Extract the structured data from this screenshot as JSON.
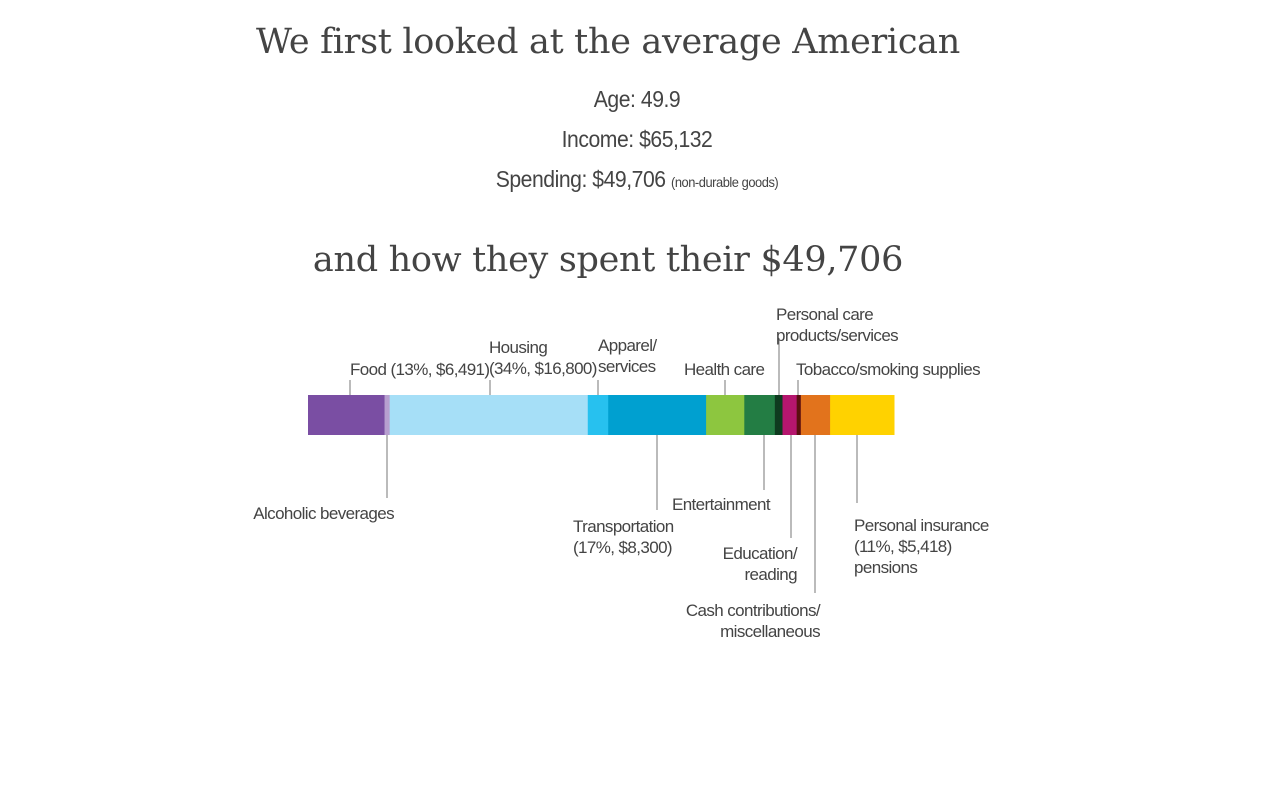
{
  "header": {
    "title": "We first looked at the average American",
    "age": "Age: 49.9",
    "income": "Income: $65,132",
    "spending": "Spending: $49,706",
    "spending_note": "(non-durable goods)",
    "subtitle": "and how they spent their $49,706"
  },
  "chart_data": {
    "type": "bar",
    "stacked": true,
    "orientation": "horizontal",
    "total": 49706,
    "segments": [
      {
        "name": "Food",
        "value": 6491,
        "color": "#7a4ea3",
        "label": [
          "Food (13%, $6,491)"
        ],
        "label_side": "top"
      },
      {
        "name": "Alcoholic beverages",
        "value": 435,
        "color": "#b79fcf",
        "label": [
          "Alcoholic beverages"
        ],
        "label_side": "bottom"
      },
      {
        "name": "Housing",
        "value": 16800,
        "color": "#a6dff7",
        "label": [
          "Housing",
          "(34%, $16,800)"
        ],
        "label_side": "top"
      },
      {
        "name": "Apparel/services",
        "value": 1735,
        "color": "#27c1ef",
        "label": [
          "Apparel/",
          "services"
        ],
        "label_side": "top"
      },
      {
        "name": "Transportation",
        "value": 8300,
        "color": "#00a0d0",
        "label": [
          "Transportation",
          "(17%, $8,300)"
        ],
        "label_side": "bottom"
      },
      {
        "name": "Health care",
        "value": 3240,
        "color": "#8dc63f",
        "label": [
          "Health care"
        ],
        "label_side": "top"
      },
      {
        "name": "Entertainment",
        "value": 2590,
        "color": "#237d44",
        "label": [
          "Entertainment"
        ],
        "label_side": "bottom"
      },
      {
        "name": "Personal care products/services",
        "value": 650,
        "color": "#0e3b1f",
        "label": [
          "Personal care",
          "products/services"
        ],
        "label_side": "top"
      },
      {
        "name": "Education/reading",
        "value": 1200,
        "color": "#b5166e",
        "label": [
          "Education/",
          "reading"
        ],
        "label_side": "bottom"
      },
      {
        "name": "Tobacco/smoking supplies",
        "value": 350,
        "color": "#5a1010",
        "label": [
          "Tobacco/smoking supplies"
        ],
        "label_side": "top"
      },
      {
        "name": "Cash contributions/miscellaneous",
        "value": 2487,
        "color": "#e2731c",
        "label": [
          "Cash contributions/",
          "miscellaneous"
        ],
        "label_side": "bottom"
      },
      {
        "name": "Personal insurance pensions",
        "value": 5418,
        "color": "#ffd200",
        "label": [
          "Personal insurance",
          "(11%, $5,418)",
          "pensions"
        ],
        "label_side": "bottom"
      }
    ]
  }
}
